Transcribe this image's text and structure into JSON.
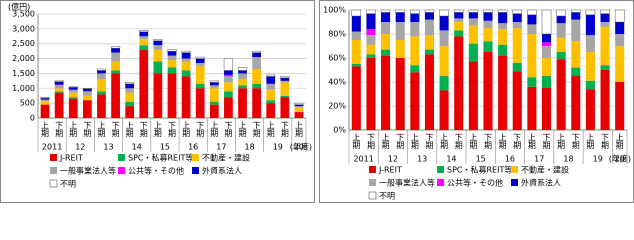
{
  "chart_data": [
    {
      "type": "stacked_bar",
      "y_label": "(億円)",
      "x_label": "(年度)",
      "categories": [
        "上期",
        "下期",
        "上期",
        "下期",
        "上期",
        "下期",
        "上期",
        "下期",
        "上期",
        "下期",
        "上期",
        "下期",
        "上期",
        "下期",
        "上期",
        "下期",
        "上期",
        "下期",
        "上期"
      ],
      "x_groups": [
        "2011",
        "12",
        "13",
        "14",
        "15",
        "16",
        "17",
        "18",
        "19",
        "20"
      ],
      "ylim": [
        0,
        3500
      ],
      "yticks": [
        0,
        500,
        {
          "value": 1000,
          "label": "1,000"
        },
        {
          "value": 1500,
          "label": "1,500"
        },
        {
          "value": 2000,
          "label": "2,000"
        },
        {
          "value": 2500,
          "label": "2,500"
        },
        {
          "value": 3000,
          "label": "3,000"
        },
        {
          "value": 3500,
          "label": "3,500"
        }
      ],
      "grid": true,
      "series": [
        {
          "name": "J-REIT",
          "color": "#e60000",
          "values": [
            450,
            850,
            650,
            600,
            800,
            1500,
            400,
            2300,
            1500,
            1500,
            1400,
            1000,
            450,
            700,
            1000,
            1000,
            500,
            700,
            200
          ]
        },
        {
          "name": "SPC・私募REIT等",
          "color": "#00b050",
          "values": [
            0,
            50,
            50,
            0,
            100,
            100,
            150,
            150,
            400,
            200,
            200,
            150,
            100,
            200,
            100,
            150,
            100,
            50,
            0
          ]
        },
        {
          "name": "不動産・建設",
          "color": "#ffc000",
          "values": [
            120,
            100,
            150,
            150,
            400,
            300,
            300,
            200,
            400,
            250,
            300,
            600,
            450,
            300,
            200,
            500,
            350,
            450,
            150
          ]
        },
        {
          "name": "一般事業法人等",
          "color": "#a6a6a6",
          "values": [
            50,
            100,
            100,
            150,
            200,
            300,
            150,
            100,
            150,
            150,
            100,
            100,
            100,
            200,
            200,
            400,
            200,
            50,
            50
          ]
        },
        {
          "name": "公共等・その他",
          "color": "#ff00ff",
          "values": [
            0,
            20,
            0,
            0,
            0,
            0,
            0,
            0,
            0,
            0,
            0,
            0,
            0,
            50,
            0,
            0,
            0,
            0,
            0
          ]
        },
        {
          "name": "外資系法人",
          "color": "#0000cc",
          "values": [
            50,
            100,
            80,
            80,
            100,
            150,
            150,
            150,
            150,
            150,
            200,
            150,
            100,
            150,
            100,
            150,
            250,
            100,
            50
          ]
        },
        {
          "name": "不明",
          "color": "#ffffff",
          "values": [
            30,
            30,
            20,
            20,
            50,
            50,
            50,
            50,
            50,
            50,
            50,
            50,
            50,
            400,
            100,
            50,
            50,
            50,
            50
          ]
        }
      ]
    },
    {
      "type": "stacked_bar",
      "x_label": "(年度)",
      "categories": [
        "上期",
        "下期",
        "上期",
        "下期",
        "上期",
        "下期",
        "上期",
        "下期",
        "上期",
        "下期",
        "上期",
        "下期",
        "上期",
        "下期",
        "上期",
        "下期",
        "上期",
        "下期",
        "上期"
      ],
      "x_groups": [
        "2011",
        "12",
        "13",
        "14",
        "15",
        "16",
        "17",
        "18",
        "19",
        "20"
      ],
      "ylim": [
        0,
        100
      ],
      "yticks": [
        {
          "value": 0,
          "label": "0%"
        },
        {
          "value": 20,
          "label": "20%"
        },
        {
          "value": 40,
          "label": "40%"
        },
        {
          "value": 60,
          "label": "60%"
        },
        {
          "value": 80,
          "label": "80%"
        },
        {
          "value": 100,
          "label": "100%"
        }
      ],
      "grid": true,
      "series": [
        {
          "name": "J-REIT",
          "color": "#e60000",
          "values": [
            53,
            60,
            62,
            60,
            48,
            63,
            33,
            78,
            57,
            65,
            62,
            49,
            36,
            35,
            59,
            45,
            34,
            50,
            40
          ]
        },
        {
          "name": "SPC・私募REIT等",
          "color": "#00b050",
          "values": [
            2,
            3,
            5,
            0,
            6,
            4,
            12,
            5,
            15,
            9,
            9,
            7,
            8,
            10,
            6,
            7,
            7,
            4,
            0
          ]
        },
        {
          "name": "不動産・建設",
          "color": "#ffc000",
          "values": [
            20,
            8,
            13,
            15,
            24,
            12,
            25,
            7,
            15,
            11,
            13,
            29,
            36,
            15,
            12,
            22,
            24,
            32,
            30
          ]
        },
        {
          "name": "一般事業法人等",
          "color": "#a6a6a6",
          "values": [
            7,
            8,
            10,
            15,
            12,
            13,
            13,
            3,
            6,
            6,
            5,
            5,
            8,
            10,
            12,
            18,
            14,
            4,
            10
          ]
        },
        {
          "name": "公共等・その他",
          "color": "#ff00ff",
          "values": [
            0,
            5,
            0,
            0,
            0,
            0,
            0,
            0,
            0,
            0,
            0,
            0,
            0,
            3,
            0,
            0,
            0,
            0,
            0
          ]
        },
        {
          "name": "外資系法人",
          "color": "#0000cc",
          "values": [
            13,
            13,
            8,
            8,
            7,
            6,
            12,
            5,
            5,
            7,
            9,
            7,
            8,
            7,
            6,
            6,
            17,
            7,
            10
          ]
        },
        {
          "name": "不明",
          "color": "#ffffff",
          "values": [
            5,
            3,
            2,
            2,
            3,
            2,
            5,
            2,
            2,
            2,
            2,
            3,
            4,
            20,
            5,
            2,
            4,
            3,
            10
          ]
        }
      ]
    }
  ]
}
